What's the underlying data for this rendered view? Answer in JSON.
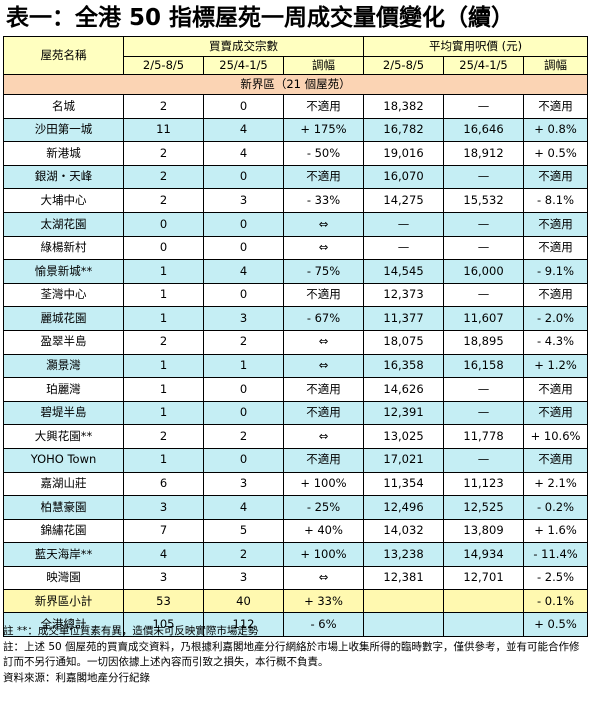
{
  "title": "表一：全港 50 指標屋苑一周成交量價變化（續）",
  "header": {
    "estate_name": "屋苑名稱",
    "group_volume": "買賣成交宗數",
    "group_price": "平均實用呎價 (元)",
    "col_week_now": "2/5-8/5",
    "col_week_prev": "25/4-1/5",
    "col_change": "調幅"
  },
  "section_label": "新界區（21 個屋苑）",
  "rows": [
    {
      "name": "名城",
      "v_now": "2",
      "v_prev": "0",
      "v_chg": "不適用",
      "p_now": "18,382",
      "p_prev": "—",
      "p_chg": "不適用",
      "band": "white"
    },
    {
      "name": "沙田第一城",
      "v_now": "11",
      "v_prev": "4",
      "v_chg": "+ 175%",
      "p_now": "16,782",
      "p_prev": "16,646",
      "p_chg": "+ 0.8%",
      "band": "blue"
    },
    {
      "name": "新港城",
      "v_now": "2",
      "v_prev": "4",
      "v_chg": "- 50%",
      "p_now": "19,016",
      "p_prev": "18,912",
      "p_chg": "+ 0.5%",
      "band": "white"
    },
    {
      "name": "銀湖・天峰",
      "v_now": "2",
      "v_prev": "0",
      "v_chg": "不適用",
      "p_now": "16,070",
      "p_prev": "—",
      "p_chg": "不適用",
      "band": "blue"
    },
    {
      "name": "大埔中心",
      "v_now": "2",
      "v_prev": "3",
      "v_chg": "- 33%",
      "p_now": "14,275",
      "p_prev": "15,532",
      "p_chg": "- 8.1%",
      "band": "white"
    },
    {
      "name": "太湖花園",
      "v_now": "0",
      "v_prev": "0",
      "v_chg": "⇔",
      "p_now": "—",
      "p_prev": "—",
      "p_chg": "不適用",
      "band": "blue"
    },
    {
      "name": "綠楊新村",
      "v_now": "0",
      "v_prev": "0",
      "v_chg": "⇔",
      "p_now": "—",
      "p_prev": "—",
      "p_chg": "不適用",
      "band": "white"
    },
    {
      "name": "愉景新城**",
      "v_now": "1",
      "v_prev": "4",
      "v_chg": "- 75%",
      "p_now": "14,545",
      "p_prev": "16,000",
      "p_chg": "- 9.1%",
      "band": "blue"
    },
    {
      "name": "荃灣中心",
      "v_now": "1",
      "v_prev": "0",
      "v_chg": "不適用",
      "p_now": "12,373",
      "p_prev": "—",
      "p_chg": "不適用",
      "band": "white"
    },
    {
      "name": "麗城花園",
      "v_now": "1",
      "v_prev": "3",
      "v_chg": "- 67%",
      "p_now": "11,377",
      "p_prev": "11,607",
      "p_chg": "- 2.0%",
      "band": "blue"
    },
    {
      "name": "盈翠半島",
      "v_now": "2",
      "v_prev": "2",
      "v_chg": "⇔",
      "p_now": "18,075",
      "p_prev": "18,895",
      "p_chg": "- 4.3%",
      "band": "white"
    },
    {
      "name": "灝景灣",
      "v_now": "1",
      "v_prev": "1",
      "v_chg": "⇔",
      "p_now": "16,358",
      "p_prev": "16,158",
      "p_chg": "+ 1.2%",
      "band": "blue"
    },
    {
      "name": "珀麗灣",
      "v_now": "1",
      "v_prev": "0",
      "v_chg": "不適用",
      "p_now": "14,626",
      "p_prev": "—",
      "p_chg": "不適用",
      "band": "white"
    },
    {
      "name": "碧堤半島",
      "v_now": "1",
      "v_prev": "0",
      "v_chg": "不適用",
      "p_now": "12,391",
      "p_prev": "—",
      "p_chg": "不適用",
      "band": "blue"
    },
    {
      "name": "大興花園**",
      "v_now": "2",
      "v_prev": "2",
      "v_chg": "⇔",
      "p_now": "13,025",
      "p_prev": "11,778",
      "p_chg": "+ 10.6%",
      "band": "white"
    },
    {
      "name": "YOHO Town",
      "v_now": "1",
      "v_prev": "0",
      "v_chg": "不適用",
      "p_now": "17,021",
      "p_prev": "—",
      "p_chg": "不適用",
      "band": "blue"
    },
    {
      "name": "嘉湖山莊",
      "v_now": "6",
      "v_prev": "3",
      "v_chg": "+ 100%",
      "p_now": "11,354",
      "p_prev": "11,123",
      "p_chg": "+ 2.1%",
      "band": "white"
    },
    {
      "name": "柏慧豪園",
      "v_now": "3",
      "v_prev": "4",
      "v_chg": "- 25%",
      "p_now": "12,496",
      "p_prev": "12,525",
      "p_chg": "- 0.2%",
      "band": "blue"
    },
    {
      "name": "錦繡花園",
      "v_now": "7",
      "v_prev": "5",
      "v_chg": "+ 40%",
      "p_now": "14,032",
      "p_prev": "13,809",
      "p_chg": "+ 1.6%",
      "band": "white"
    },
    {
      "name": "藍天海岸**",
      "v_now": "4",
      "v_prev": "2",
      "v_chg": "+ 100%",
      "p_now": "13,238",
      "p_prev": "14,934",
      "p_chg": "- 11.4%",
      "band": "blue"
    },
    {
      "name": "映灣園",
      "v_now": "3",
      "v_prev": "3",
      "v_chg": "⇔",
      "p_now": "12,381",
      "p_prev": "12,701",
      "p_chg": "- 2.5%",
      "band": "white"
    }
  ],
  "subtotal": {
    "name": "新界區小計",
    "v_now": "53",
    "v_prev": "40",
    "v_chg": "+ 33%",
    "p_now": "",
    "p_prev": "",
    "p_chg": "- 0.1%"
  },
  "total": {
    "name": "全港總計",
    "v_now": "105",
    "v_prev": "112",
    "v_chg": "- 6%",
    "p_now": "",
    "p_prev": "",
    "p_chg": "+ 0.5%"
  },
  "notes": [
    "註 **：成交單位質素有異，造價未可反映實際市場走勢",
    "註：上述 50 個屋苑的買賣成交資料，乃根據利嘉閣地產分行網絡於市場上收集所得的臨時數字，僅供參考，並有可能合作修訂而不另行通知。一切因依據上述內容而引致之損失，本行概不負責。",
    "資料來源：利嘉閣地產分行紀錄"
  ]
}
